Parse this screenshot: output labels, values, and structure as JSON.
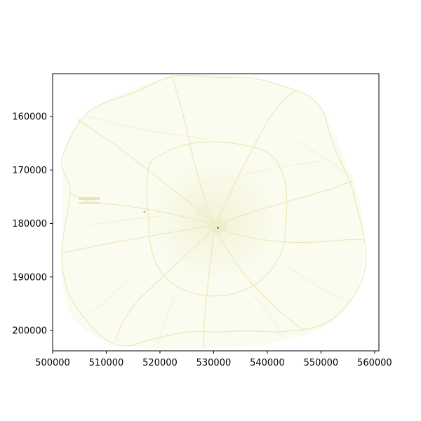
{
  "chart_data": {
    "type": "heatmap",
    "title": "",
    "xlabel": "",
    "ylabel": "",
    "xlim": [
      500000,
      560800
    ],
    "ylim": [
      152000,
      203800
    ],
    "y_inverted": true,
    "x_ticks": [
      500000,
      510000,
      520000,
      530000,
      540000,
      550000,
      560000
    ],
    "x_tick_labels": [
      "500000",
      "510000",
      "520000",
      "530000",
      "540000",
      "550000",
      "560000"
    ],
    "y_ticks": [
      160000,
      170000,
      180000,
      190000,
      200000
    ],
    "y_tick_labels": [
      "160000",
      "170000",
      "180000",
      "190000",
      "200000"
    ],
    "grid": false,
    "legend": "none",
    "colormap": "yellow-green",
    "colors": {
      "background": "#fdfdf6",
      "low": "#fbfbef",
      "road": "#e6ebb8",
      "center": "#b8c27a",
      "peak": "#556b2f"
    },
    "peak_point": {
      "x": 530800,
      "y": 180800
    }
  }
}
